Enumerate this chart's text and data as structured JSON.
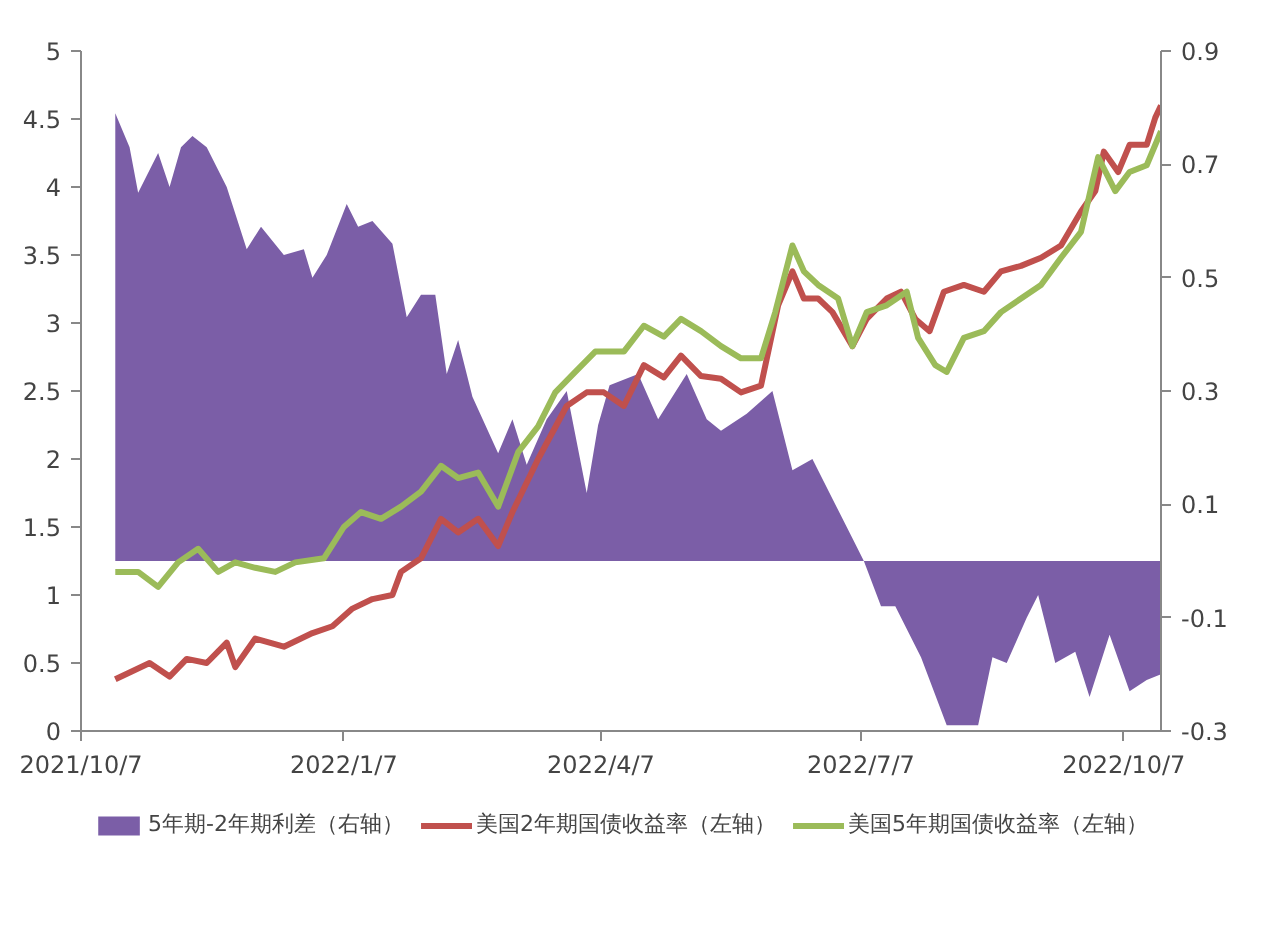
{
  "chart_data": {
    "type": "line",
    "xlim": [
      "2021-10-07",
      "2022-10-20"
    ],
    "xticks": [
      {
        "value": "2021-10-07",
        "label": "2021/10/7"
      },
      {
        "value": "2022-01-07",
        "label": "2022/1/7"
      },
      {
        "value": "2022-04-07",
        "label": "2022/4/7"
      },
      {
        "value": "2022-07-07",
        "label": "2022/7/7"
      },
      {
        "value": "2022-10-07",
        "label": "2022/10/7"
      }
    ],
    "ylim": [
      0,
      5
    ],
    "yticks": [
      0,
      0.5,
      1,
      1.5,
      2,
      2.5,
      3,
      3.5,
      4,
      4.5,
      5
    ],
    "y2lim": [
      -0.3,
      0.9
    ],
    "y2ticks": [
      -0.3,
      -0.1,
      0.1,
      0.3,
      0.5,
      0.7,
      0.9
    ],
    "grid": false,
    "legend": "bottom",
    "marker": "none",
    "line_style": "solid",
    "series": [
      {
        "name": "5年期-2年期利差（右轴）",
        "type": "area",
        "axis": "y2",
        "color": "#7b5ea7",
        "x": [
          "2021-10-19",
          "2021-10-24",
          "2021-10-27",
          "2021-10-31",
          "2021-11-03",
          "2021-11-07",
          "2021-11-11",
          "2021-11-15",
          "2021-11-20",
          "2021-11-27",
          "2021-12-04",
          "2021-12-09",
          "2021-12-17",
          "2021-12-24",
          "2021-12-27",
          "2022-01-01",
          "2022-01-08",
          "2022-01-12",
          "2022-01-17",
          "2022-01-24",
          "2022-01-29",
          "2022-02-03",
          "2022-02-08",
          "2022-02-12",
          "2022-02-16",
          "2022-02-21",
          "2022-03-02",
          "2022-03-07",
          "2022-03-12",
          "2022-03-19",
          "2022-03-26",
          "2022-04-02",
          "2022-04-06",
          "2022-04-10",
          "2022-04-20",
          "2022-04-27",
          "2022-05-07",
          "2022-05-14",
          "2022-05-19",
          "2022-05-28",
          "2022-06-06",
          "2022-06-13",
          "2022-06-20",
          "2022-06-27",
          "2022-07-04",
          "2022-07-08",
          "2022-07-14",
          "2022-07-19",
          "2022-07-28",
          "2022-08-06",
          "2022-08-17",
          "2022-08-22",
          "2022-08-27",
          "2022-09-03",
          "2022-09-07",
          "2022-09-13",
          "2022-09-20",
          "2022-09-25",
          "2022-10-02",
          "2022-10-09",
          "2022-10-15",
          "2022-10-20"
        ],
        "values": [
          0.79,
          0.73,
          0.65,
          0.69,
          0.72,
          0.66,
          0.73,
          0.75,
          0.73,
          0.66,
          0.55,
          0.59,
          0.54,
          0.55,
          0.5,
          0.54,
          0.63,
          0.59,
          0.6,
          0.56,
          0.43,
          0.47,
          0.47,
          0.33,
          0.39,
          0.29,
          0.19,
          0.25,
          0.17,
          0.25,
          0.3,
          0.12,
          0.24,
          0.31,
          0.33,
          0.25,
          0.33,
          0.25,
          0.23,
          0.26,
          0.3,
          0.16,
          0.18,
          0.11,
          0.04,
          0,
          -0.08,
          -0.08,
          -0.17,
          -0.29,
          -0.29,
          -0.17,
          -0.18,
          -0.1,
          -0.06,
          -0.18,
          -0.16,
          -0.24,
          -0.13,
          -0.23,
          -0.21,
          -0.2
        ]
      },
      {
        "name": "美国2年期国债收益率（左轴）",
        "color": "#c0504d",
        "x": [
          "2021-10-19",
          "2021-10-24",
          "2021-10-31",
          "2021-11-07",
          "2021-11-13",
          "2021-11-20",
          "2021-11-27",
          "2021-11-30",
          "2021-12-07",
          "2021-12-17",
          "2021-12-27",
          "2022-01-03",
          "2022-01-10",
          "2022-01-17",
          "2022-01-24",
          "2022-01-27",
          "2022-02-03",
          "2022-02-10",
          "2022-02-16",
          "2022-02-23",
          "2022-03-02",
          "2022-03-07",
          "2022-03-16",
          "2022-03-26",
          "2022-04-02",
          "2022-04-08",
          "2022-04-15",
          "2022-04-22",
          "2022-04-29",
          "2022-05-05",
          "2022-05-12",
          "2022-05-19",
          "2022-05-26",
          "2022-06-02",
          "2022-06-08",
          "2022-06-13",
          "2022-06-17",
          "2022-06-22",
          "2022-06-27",
          "2022-07-04",
          "2022-07-09",
          "2022-07-16",
          "2022-07-21",
          "2022-07-26",
          "2022-07-31",
          "2022-08-05",
          "2022-08-12",
          "2022-08-19",
          "2022-08-25",
          "2022-09-01",
          "2022-09-08",
          "2022-09-15",
          "2022-09-22",
          "2022-09-27",
          "2022-09-30",
          "2022-10-05",
          "2022-10-09",
          "2022-10-15",
          "2022-10-18",
          "2022-10-20"
        ],
        "values": [
          0.38,
          0.43,
          0.5,
          0.4,
          0.53,
          0.5,
          0.65,
          0.47,
          0.68,
          0.62,
          0.72,
          0.77,
          0.9,
          0.97,
          1.0,
          1.17,
          1.27,
          1.56,
          1.46,
          1.56,
          1.36,
          1.61,
          2.0,
          2.39,
          2.49,
          2.49,
          2.39,
          2.69,
          2.6,
          2.76,
          2.61,
          2.59,
          2.49,
          2.54,
          3.13,
          3.38,
          3.18,
          3.18,
          3.08,
          2.83,
          3.03,
          3.18,
          3.23,
          3.03,
          2.94,
          3.23,
          3.28,
          3.23,
          3.38,
          3.42,
          3.48,
          3.57,
          3.82,
          3.97,
          4.26,
          4.11,
          4.31,
          4.31,
          4.51,
          4.6
        ]
      },
      {
        "name": "美国5年期国债收益率（左轴）",
        "color": "#9bbb59",
        "x": [
          "2021-10-19",
          "2021-10-27",
          "2021-11-03",
          "2021-11-10",
          "2021-11-17",
          "2021-11-24",
          "2021-11-30",
          "2021-12-07",
          "2021-12-14",
          "2021-12-21",
          "2021-12-31",
          "2022-01-07",
          "2022-01-13",
          "2022-01-20",
          "2022-01-27",
          "2022-02-03",
          "2022-02-10",
          "2022-02-16",
          "2022-02-23",
          "2022-03-02",
          "2022-03-09",
          "2022-03-16",
          "2022-03-22",
          "2022-03-29",
          "2022-04-05",
          "2022-04-10",
          "2022-04-15",
          "2022-04-22",
          "2022-04-29",
          "2022-05-05",
          "2022-05-12",
          "2022-05-19",
          "2022-05-26",
          "2022-06-02",
          "2022-06-07",
          "2022-06-13",
          "2022-06-17",
          "2022-06-22",
          "2022-06-29",
          "2022-07-04",
          "2022-07-09",
          "2022-07-16",
          "2022-07-23",
          "2022-07-27",
          "2022-08-02",
          "2022-08-06",
          "2022-08-12",
          "2022-08-19",
          "2022-08-25",
          "2022-09-01",
          "2022-09-08",
          "2022-09-15",
          "2022-09-22",
          "2022-09-28",
          "2022-10-04",
          "2022-10-09",
          "2022-10-15",
          "2022-10-20"
        ],
        "values": [
          1.17,
          1.17,
          1.06,
          1.24,
          1.34,
          1.17,
          1.24,
          1.2,
          1.17,
          1.24,
          1.27,
          1.5,
          1.61,
          1.56,
          1.65,
          1.76,
          1.95,
          1.86,
          1.9,
          1.65,
          2.05,
          2.24,
          2.49,
          2.64,
          2.79,
          2.79,
          2.79,
          2.98,
          2.9,
          3.03,
          2.94,
          2.83,
          2.74,
          2.74,
          3.08,
          3.57,
          3.38,
          3.28,
          3.18,
          2.83,
          3.08,
          3.13,
          3.23,
          2.89,
          2.69,
          2.64,
          2.89,
          2.94,
          3.08,
          3.18,
          3.28,
          3.48,
          3.67,
          4.22,
          3.97,
          4.11,
          4.16,
          4.41
        ]
      }
    ]
  }
}
